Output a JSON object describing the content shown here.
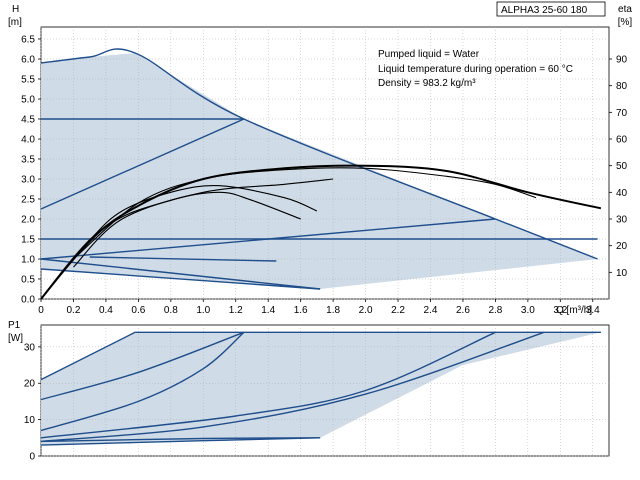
{
  "model": "ALPHA3 25-60 180",
  "info_lines": [
    "Pumped liquid = Water",
    "Liquid temperature during operation = 60 °C",
    "Density = 983.2 kg/m³"
  ],
  "colors": {
    "curve": "#1f4e8c",
    "envelope": "#cfdbe6",
    "eta": "#000000",
    "grid": "#b0b0b0"
  },
  "chart_data": [
    {
      "type": "line",
      "title": "",
      "xlabel": "Q [m³/h]",
      "ylabel": "H [m]",
      "y2label": "eta [%]",
      "xlim": [
        0,
        3.5
      ],
      "ylim": [
        0,
        6.8
      ],
      "y2lim": [
        0,
        102
      ],
      "x_ticks": [
        "0",
        "0.2",
        "0.4",
        "0.6",
        "0.8",
        "1.0",
        "1.2",
        "1.4",
        "1.6",
        "1.8",
        "2.0",
        "2.2",
        "2.4",
        "2.6",
        "2.8",
        "3.0",
        "3.2",
        "3.4"
      ],
      "y_ticks": [
        "0.0",
        "0.5",
        "1.0",
        "1.5",
        "2.0",
        "2.5",
        "3.0",
        "3.5",
        "4.0",
        "4.5",
        "5.0",
        "5.5",
        "6.0",
        "6.5"
      ],
      "y2_ticks": [
        "10",
        "20",
        "30",
        "40",
        "50",
        "60",
        "70",
        "80",
        "90"
      ],
      "grid": true,
      "envelope": [
        [
          0,
          5.9
        ],
        [
          0.3,
          6.05
        ],
        [
          0.58,
          6.15
        ],
        [
          1.25,
          4.5
        ],
        [
          2.8,
          2.0
        ],
        [
          3.43,
          1.0
        ],
        [
          1.72,
          0.25
        ],
        [
          0,
          0.75
        ]
      ],
      "series": [
        {
          "values": [
            [
              0,
              5.9
            ],
            [
              0.3,
              6.05
            ],
            [
              0.58,
              6.15
            ],
            [
              1.25,
              4.5
            ],
            [
              2.8,
              2.0
            ],
            [
              3.43,
              1.0
            ]
          ]
        },
        {
          "values": [
            [
              0,
              4.5
            ],
            [
              1.25,
              4.5
            ]
          ]
        },
        {
          "values": [
            [
              0,
              2.25
            ],
            [
              1.25,
              4.5
            ]
          ]
        },
        {
          "values": [
            [
              0,
              1.5
            ],
            [
              3.43,
              1.5
            ]
          ]
        },
        {
          "values": [
            [
              0,
              1.0
            ],
            [
              2.8,
              2.0
            ]
          ]
        },
        {
          "values": [
            [
              0,
              1.0
            ],
            [
              1.72,
              0.25
            ]
          ]
        },
        {
          "values": [
            [
              0,
              0.75
            ],
            [
              1.72,
              0.25
            ]
          ]
        },
        {
          "values": [
            [
              0.3,
              1.05
            ],
            [
              1.45,
              0.95
            ]
          ]
        },
        {
          "values": [
            [
              0,
              0
            ],
            [
              0.3,
              22
            ],
            [
              0.5,
              33
            ],
            [
              0.8,
              40
            ],
            [
              1.1,
              42.5
            ],
            [
              1.5,
              38
            ],
            [
              1.7,
              33
            ]
          ],
          "axis": "y2",
          "kind": "eta"
        },
        {
          "values": [
            [
              0,
              0
            ],
            [
              0.3,
              22
            ],
            [
              0.6,
              35
            ],
            [
              1.0,
              45
            ],
            [
              1.5,
              49
            ],
            [
              2.0,
              50
            ],
            [
              2.5,
              48
            ],
            [
              3.0,
              40
            ],
            [
              3.45,
              34
            ]
          ],
          "axis": "y2",
          "kind": "eta"
        },
        {
          "values": [
            [
              0.2,
              15
            ],
            [
              0.6,
              36
            ],
            [
              1.0,
              45
            ],
            [
              1.5,
              48.5
            ],
            [
              2.0,
              49
            ],
            [
              2.5,
              46
            ],
            [
              2.8,
              43
            ],
            [
              3.05,
              38
            ]
          ],
          "axis": "y2",
          "kind": "eta"
        },
        {
          "values": [
            [
              0,
              0
            ],
            [
              0.4,
              27
            ],
            [
              0.8,
              37
            ],
            [
              1.1,
              40
            ],
            [
              1.3,
              37
            ],
            [
              1.6,
              30
            ]
          ],
          "axis": "y2",
          "kind": "eta"
        },
        {
          "values": [
            [
              0.2,
              12
            ],
            [
              0.5,
              30
            ],
            [
              1.0,
              40
            ],
            [
              1.5,
              43
            ],
            [
              1.8,
              45
            ]
          ],
          "axis": "y2",
          "kind": "eta"
        }
      ]
    },
    {
      "type": "line",
      "title": "",
      "xlabel": "",
      "ylabel": "P1 [W]",
      "xlim": [
        0,
        3.5
      ],
      "ylim": [
        0,
        36
      ],
      "y_ticks": [
        "0",
        "10",
        "20",
        "30"
      ],
      "grid": true,
      "envelope": [
        [
          0,
          21
        ],
        [
          0.58,
          34
        ],
        [
          3.45,
          34
        ],
        [
          2.6,
          25
        ],
        [
          1.72,
          5
        ],
        [
          0,
          3
        ]
      ],
      "series": [
        {
          "values": [
            [
              0.58,
              34
            ],
            [
              3.45,
              34
            ]
          ]
        },
        {
          "values": [
            [
              0,
              21
            ],
            [
              0.58,
              34
            ]
          ]
        },
        {
          "values": [
            [
              0,
              15.5
            ],
            [
              0.6,
              23
            ],
            [
              1.25,
              34
            ]
          ]
        },
        {
          "values": [
            [
              0,
              7
            ],
            [
              0.6,
              15
            ],
            [
              1.0,
              24
            ],
            [
              1.25,
              34
            ]
          ]
        },
        {
          "values": [
            [
              0,
              5
            ],
            [
              1.2,
              11
            ],
            [
              2.0,
              18
            ],
            [
              2.8,
              34
            ]
          ]
        },
        {
          "values": [
            [
              0,
              4
            ],
            [
              1.0,
              8
            ],
            [
              2.0,
              17
            ],
            [
              3.1,
              34
            ]
          ]
        },
        {
          "values": [
            [
              0,
              3
            ],
            [
              1.0,
              4.2
            ],
            [
              1.72,
              5
            ]
          ]
        },
        {
          "values": [
            [
              0,
              4
            ],
            [
              1.0,
              4.8
            ],
            [
              1.72,
              5
            ]
          ]
        }
      ]
    }
  ]
}
